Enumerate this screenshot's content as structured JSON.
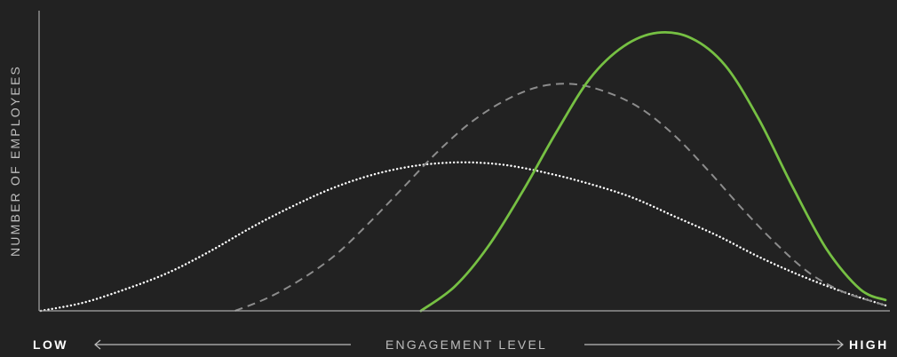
{
  "chart_data": {
    "type": "line",
    "title": "",
    "xlabel": "ENGAGEMENT LEVEL",
    "ylabel": "NUMBER OF EMPLOYEES",
    "x_axis_ends": {
      "low": "LOW",
      "high": "HIGH"
    },
    "xlim": [
      0,
      100
    ],
    "ylim": [
      0,
      100
    ],
    "grid": false,
    "legend": "none",
    "series": [
      {
        "style": "dotted",
        "color": "#ffffff",
        "x": [
          0,
          5,
          10,
          15,
          20,
          25,
          30,
          35,
          40,
          45,
          50,
          55,
          60,
          65,
          70,
          75,
          80,
          85,
          90,
          95,
          100
        ],
        "y": [
          0,
          3,
          8,
          14,
          22,
          31,
          39,
          46,
          51,
          54,
          55,
          54,
          51,
          47,
          42,
          35,
          28,
          20,
          13,
          7,
          2
        ]
      },
      {
        "style": "dashed",
        "color": "#8c8c8c",
        "x": [
          23,
          27,
          31,
          35,
          39,
          43,
          47,
          51,
          55,
          59,
          63,
          67,
          71,
          75,
          79,
          83,
          87,
          91,
          95,
          99,
          100
        ],
        "y": [
          0,
          5,
          12,
          21,
          33,
          46,
          59,
          70,
          78,
          83,
          84,
          81,
          75,
          65,
          52,
          38,
          25,
          14,
          7,
          3,
          2
        ]
      },
      {
        "style": "solid",
        "color": "#76c043",
        "x": [
          45,
          49,
          53,
          57,
          61,
          65,
          69,
          73,
          77,
          81,
          85,
          89,
          93,
          97,
          100
        ],
        "y": [
          0,
          9,
          24,
          44,
          66,
          86,
          98,
          103,
          101,
          91,
          71,
          46,
          23,
          8,
          4
        ]
      }
    ]
  }
}
